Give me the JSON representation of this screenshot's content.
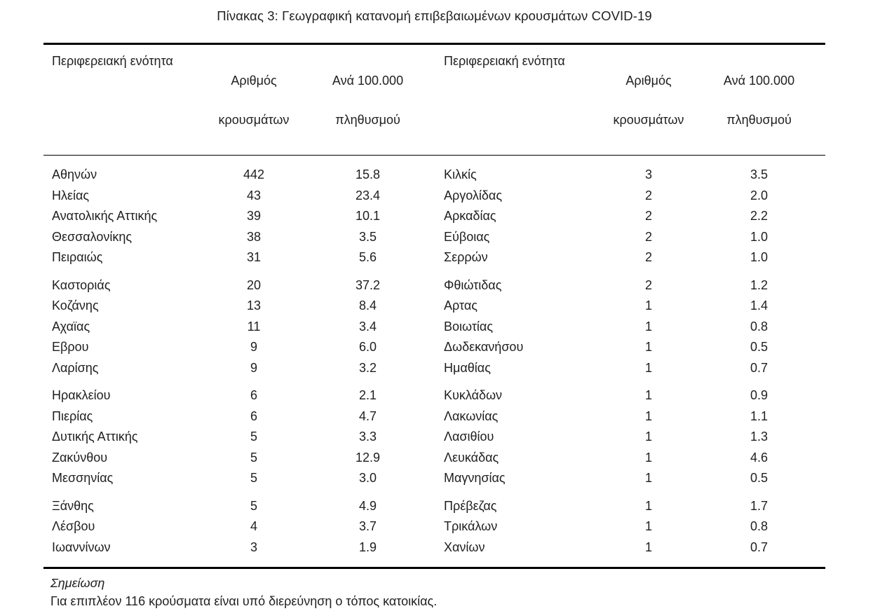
{
  "title": "Πίνακας 3: Γεωγραφική κατανομή επιβεβαιωμένων κρουσμάτων COVID-19",
  "colors": {
    "text": "#1f1f1f",
    "rule": "#000000",
    "background": "#ffffff"
  },
  "table": {
    "column_headers": {
      "region": "Περιφερειακή ενότητα",
      "cases": [
        "Αριθμός",
        "κρουσμάτων"
      ],
      "per_100k": [
        "Ανά 100.000",
        "πληθυσμού"
      ]
    },
    "left_groups": [
      [
        {
          "region": "Αθηνών",
          "cases": "442",
          "per_100k": "15.8"
        },
        {
          "region": "Ηλείας",
          "cases": "43",
          "per_100k": "23.4"
        },
        {
          "region": "Ανατολικής Αττικής",
          "cases": "39",
          "per_100k": "10.1"
        },
        {
          "region": "Θεσσαλονίκης",
          "cases": "38",
          "per_100k": "3.5"
        },
        {
          "region": "Πειραιώς",
          "cases": "31",
          "per_100k": "5.6"
        }
      ],
      [
        {
          "region": "Καστοριάς",
          "cases": "20",
          "per_100k": "37.2"
        },
        {
          "region": "Κοζάνης",
          "cases": "13",
          "per_100k": "8.4"
        },
        {
          "region": "Αχαϊας",
          "cases": "11",
          "per_100k": "3.4"
        },
        {
          "region": "Εβρου",
          "cases": "9",
          "per_100k": "6.0"
        },
        {
          "region": "Λαρίσης",
          "cases": "9",
          "per_100k": "3.2"
        }
      ],
      [
        {
          "region": "Ηρακλείου",
          "cases": "6",
          "per_100k": "2.1"
        },
        {
          "region": "Πιερίας",
          "cases": "6",
          "per_100k": "4.7"
        },
        {
          "region": "Δυτικής Αττικής",
          "cases": "5",
          "per_100k": "3.3"
        },
        {
          "region": "Ζακύνθου",
          "cases": "5",
          "per_100k": "12.9"
        },
        {
          "region": "Μεσσηνίας",
          "cases": "5",
          "per_100k": "3.0"
        }
      ],
      [
        {
          "region": "Ξάνθης",
          "cases": "5",
          "per_100k": "4.9"
        },
        {
          "region": "Λέσβου",
          "cases": "4",
          "per_100k": "3.7"
        },
        {
          "region": "Ιωαννίνων",
          "cases": "3",
          "per_100k": "1.9"
        }
      ]
    ],
    "right_groups": [
      [
        {
          "region": "Κιλκίς",
          "cases": "3",
          "per_100k": "3.5"
        },
        {
          "region": "Αργολίδας",
          "cases": "2",
          "per_100k": "2.0"
        },
        {
          "region": "Αρκαδίας",
          "cases": "2",
          "per_100k": "2.2"
        },
        {
          "region": "Εύβοιας",
          "cases": "2",
          "per_100k": "1.0"
        },
        {
          "region": "Σερρών",
          "cases": "2",
          "per_100k": "1.0"
        }
      ],
      [
        {
          "region": "Φθιώτιδας",
          "cases": "2",
          "per_100k": "1.2"
        },
        {
          "region": "Αρτας",
          "cases": "1",
          "per_100k": "1.4"
        },
        {
          "region": "Βοιωτίας",
          "cases": "1",
          "per_100k": "0.8"
        },
        {
          "region": "Δωδεκανήσου",
          "cases": "1",
          "per_100k": "0.5"
        },
        {
          "region": "Ημαθίας",
          "cases": "1",
          "per_100k": "0.7"
        }
      ],
      [
        {
          "region": "Κυκλάδων",
          "cases": "1",
          "per_100k": "0.9"
        },
        {
          "region": "Λακωνίας",
          "cases": "1",
          "per_100k": "1.1"
        },
        {
          "region": "Λασιθίου",
          "cases": "1",
          "per_100k": "1.3"
        },
        {
          "region": "Λευκάδας",
          "cases": "1",
          "per_100k": "4.6"
        },
        {
          "region": "Μαγνησίας",
          "cases": "1",
          "per_100k": "0.5"
        }
      ],
      [
        {
          "region": "Πρέβεζας",
          "cases": "1",
          "per_100k": "1.7"
        },
        {
          "region": "Τρικάλων",
          "cases": "1",
          "per_100k": "0.8"
        },
        {
          "region": "Χανίων",
          "cases": "1",
          "per_100k": "0.7"
        }
      ]
    ]
  },
  "note": {
    "label": "Σημείωση",
    "text": "Για επιπλέον 116 κρούσματα είναι υπό διερεύνηση ο τόπος κατοικίας."
  }
}
